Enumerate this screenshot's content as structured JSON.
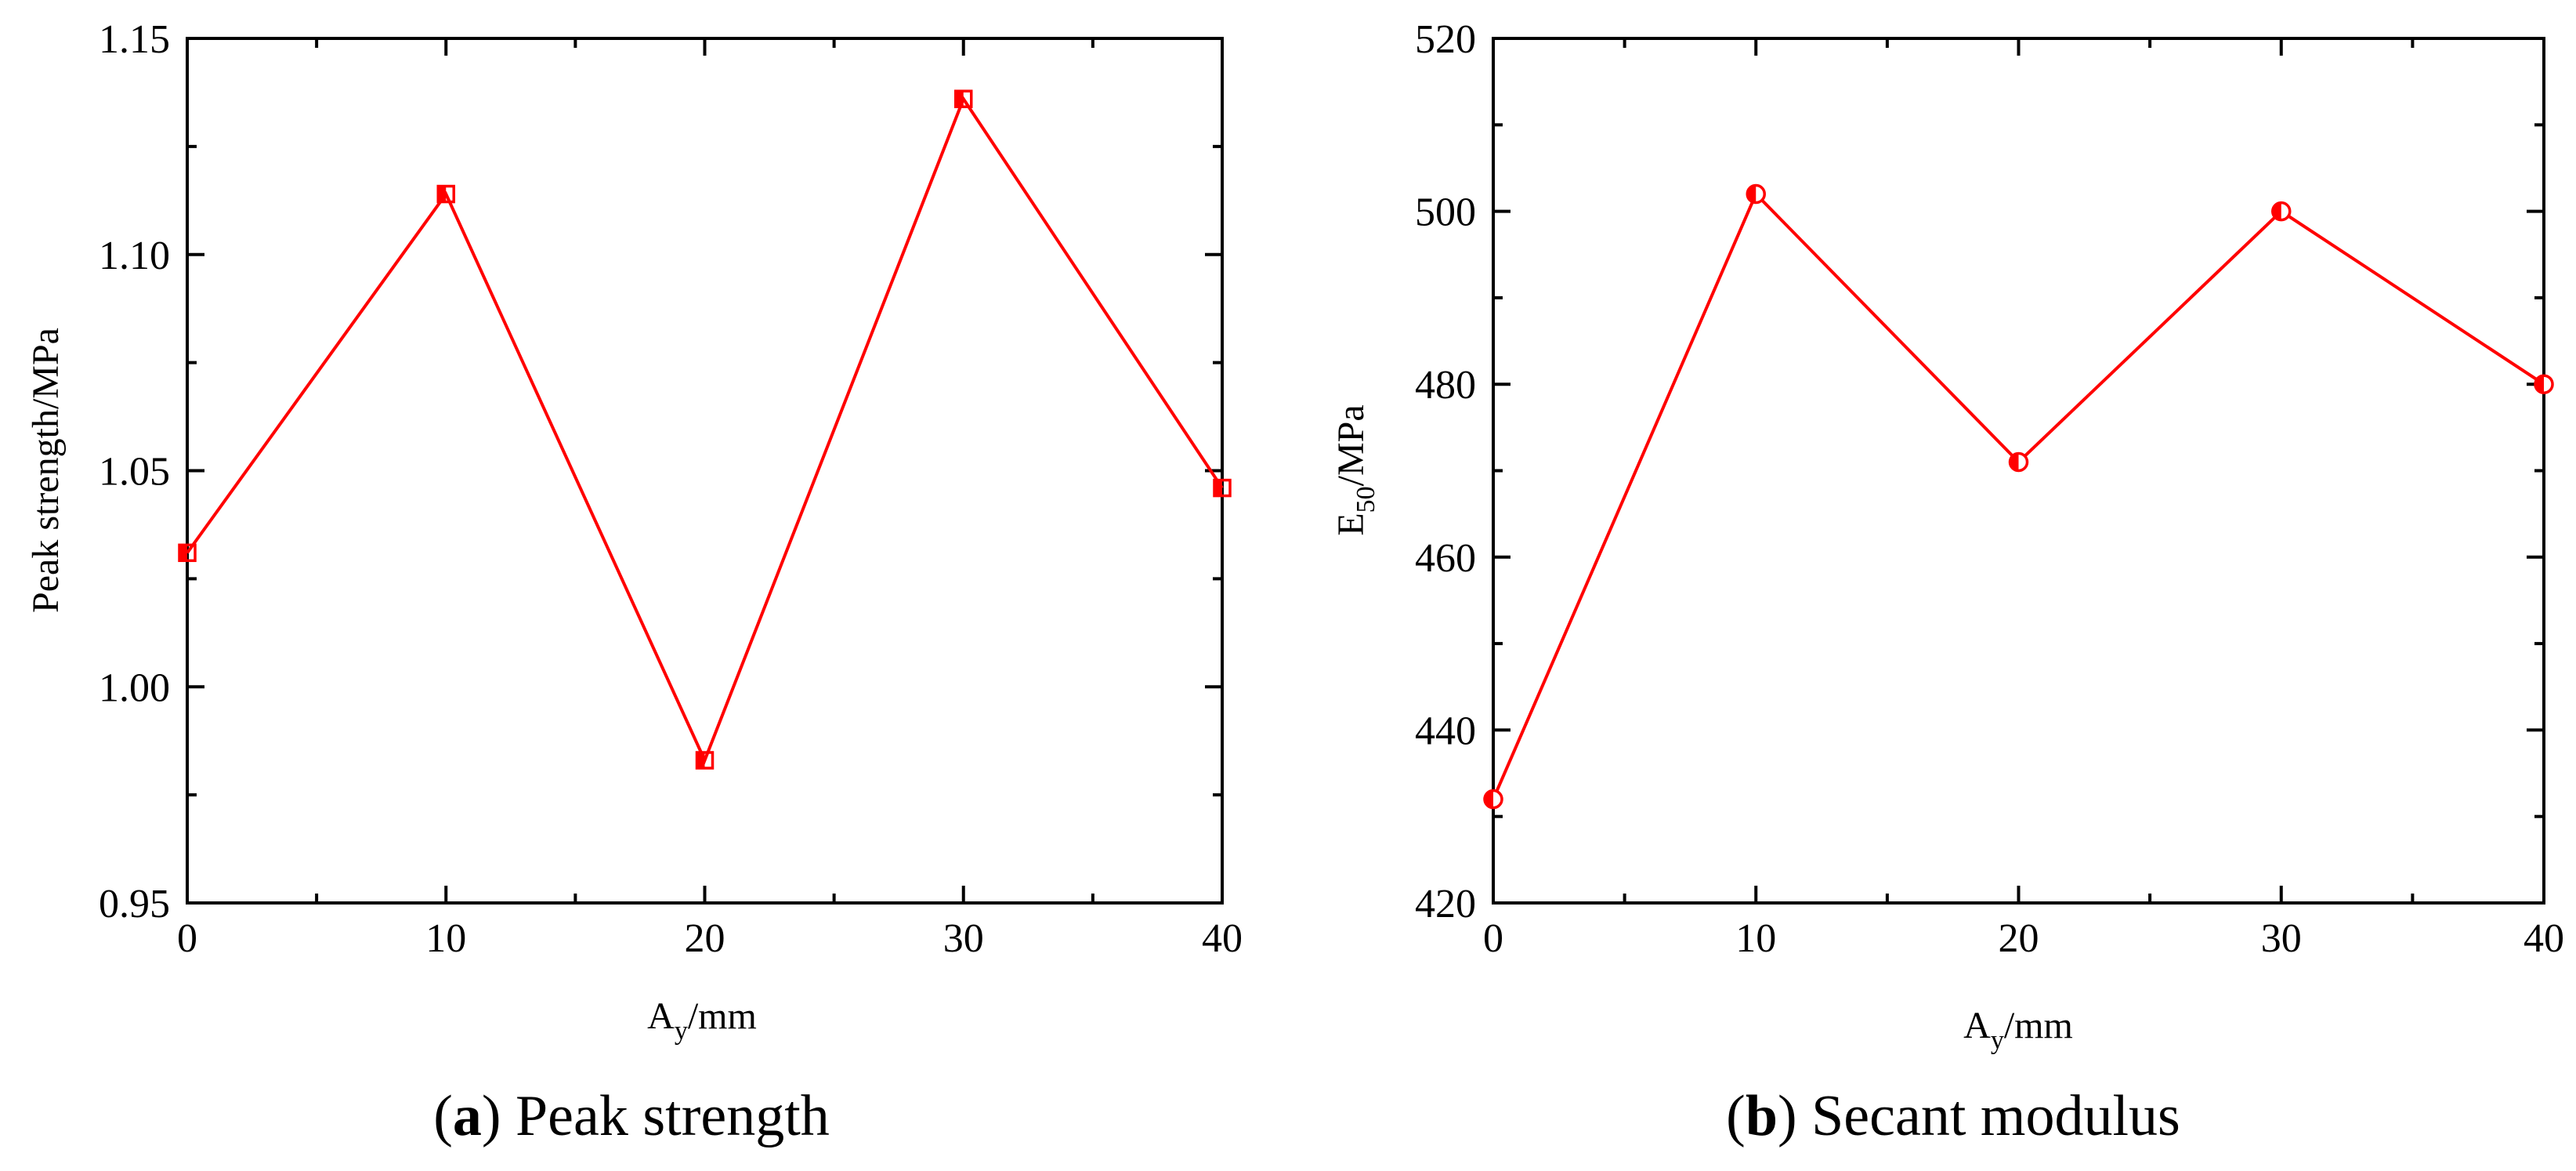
{
  "chart_data": [
    {
      "type": "line",
      "ylabel": "Peak strength/MPa",
      "xlabel_main": "A",
      "xlabel_sub": "y",
      "xlabel_rest": "/mm",
      "xlim": [
        0,
        40
      ],
      "ylim": [
        0.95,
        1.15
      ],
      "xticks": [
        "0",
        "10",
        "20",
        "30",
        "40"
      ],
      "yticks": [
        "0.95",
        "1.00",
        "1.05",
        "1.10",
        "1.15"
      ],
      "marker": "square-half-filled",
      "color": "#ff0000",
      "x": [
        0,
        10,
        20,
        30,
        40
      ],
      "y": [
        1.031,
        1.114,
        0.983,
        1.136,
        1.046
      ],
      "caption_letter": "a",
      "caption_text": "Peak strength"
    },
    {
      "type": "line",
      "ylabel_main": "E",
      "ylabel_sub": "50",
      "ylabel_rest": "/MPa",
      "xlabel_main": "A",
      "xlabel_sub": "y",
      "xlabel_rest": "/mm",
      "xlim": [
        0,
        40
      ],
      "ylim": [
        420,
        520
      ],
      "xticks": [
        "0",
        "10",
        "20",
        "30",
        "40"
      ],
      "yticks": [
        "420",
        "440",
        "460",
        "480",
        "500",
        "520"
      ],
      "marker": "circle-half-filled",
      "color": "#ff0000",
      "x": [
        0,
        10,
        20,
        30,
        40
      ],
      "y": [
        432,
        502,
        471,
        500,
        480
      ],
      "caption_letter": "b",
      "caption_text": "Secant modulus"
    }
  ]
}
